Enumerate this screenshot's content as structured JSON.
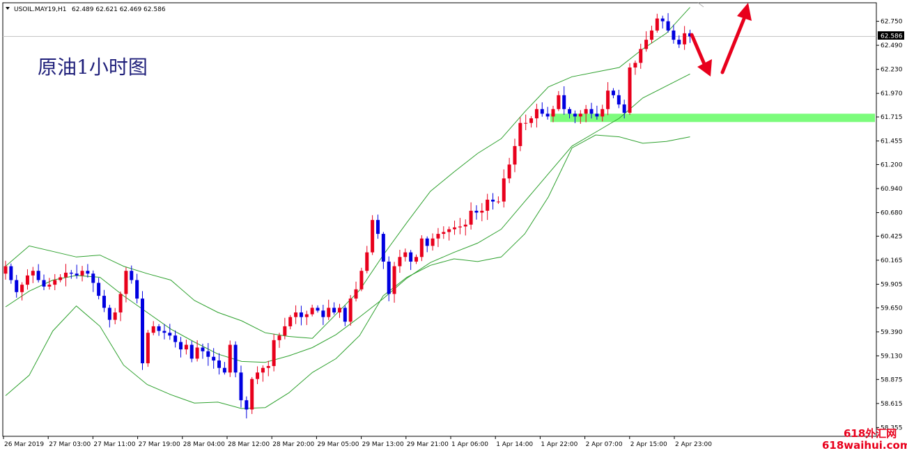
{
  "header": {
    "symbol": "USOIL.MAY19,H1",
    "ohlc": "62.489 62.621 62.469 62.586"
  },
  "annotation_title": "原油1小时图",
  "watermark": {
    "line1": "618外汇网",
    "line2": "618waihui.com"
  },
  "colors": {
    "bull": "#e8001c",
    "bear": "#0000e0",
    "bands": "#2ca02c",
    "support_zone": "#7cfc7c",
    "arrows": "#e8001c",
    "price_line": "#c0c0c0"
  },
  "chart_data": {
    "type": "candlestick",
    "symbol": "USOIL.MAY19",
    "timeframe": "H1",
    "current_price": "62.586",
    "y_ticks": [
      "62.750",
      "62.490",
      "62.230",
      "61.970",
      "61.715",
      "61.455",
      "61.200",
      "60.940",
      "60.680",
      "60.425",
      "60.165",
      "59.905",
      "59.650",
      "59.390",
      "59.130",
      "58.875",
      "58.615",
      "58.355"
    ],
    "ylim": [
      58.26,
      62.95
    ],
    "x_ticks": [
      "26 Mar 2019",
      "27 Mar 03:00",
      "27 Mar 11:00",
      "27 Mar 19:00",
      "28 Mar 04:00",
      "28 Mar 12:00",
      "28 Mar 20:00",
      "29 Mar 05:00",
      "29 Mar 13:00",
      "29 Mar 21:00",
      "1 Apr 06:00",
      "1 Apr 14:00",
      "1 Apr 22:00",
      "2 Apr 07:00",
      "2 Apr 15:00",
      "2 Apr 23:00"
    ],
    "closes": [
      60.1,
      59.95,
      59.82,
      59.9,
      60.0,
      60.05,
      59.95,
      59.88,
      59.9,
      59.95,
      59.98,
      60.03,
      60.02,
      60.0,
      60.05,
      60.02,
      59.92,
      59.78,
      59.65,
      59.52,
      59.6,
      59.8,
      60.05,
      59.95,
      59.75,
      59.05,
      59.38,
      59.45,
      59.4,
      59.38,
      59.35,
      59.28,
      59.2,
      59.25,
      59.1,
      59.22,
      59.18,
      59.12,
      59.08,
      59.0,
      58.95,
      59.25,
      58.95,
      58.65,
      58.55,
      58.88,
      58.95,
      59.0,
      59.02,
      59.3,
      59.35,
      59.45,
      59.55,
      59.6,
      59.55,
      59.58,
      59.65,
      59.62,
      59.55,
      59.65,
      59.6,
      59.65,
      59.5,
      59.75,
      59.85,
      60.05,
      60.25,
      60.6,
      60.45,
      60.15,
      59.8,
      60.1,
      60.2,
      60.25,
      60.15,
      60.2,
      60.4,
      60.32,
      60.4,
      60.45,
      60.47,
      60.5,
      60.52,
      60.53,
      60.55,
      60.7,
      60.68,
      60.7,
      60.82,
      60.8,
      60.8,
      61.05,
      61.2,
      61.4,
      61.65,
      61.65,
      61.7,
      61.8,
      61.75,
      61.72,
      61.8,
      61.95,
      61.8,
      61.75,
      61.72,
      61.75,
      61.8,
      61.75,
      61.72,
      61.8,
      62.0,
      61.95,
      61.85,
      61.76,
      62.25,
      62.3,
      62.45,
      62.55,
      62.65,
      62.78,
      62.75,
      62.65,
      62.55,
      62.5,
      62.62,
      62.586
    ],
    "band_upper": [
      60.1,
      60.32,
      60.26,
      60.2,
      60.22,
      60.1,
      60.02,
      59.95,
      59.73,
      59.6,
      59.51,
      59.38,
      59.34,
      59.32,
      59.58,
      59.84,
      60.22,
      60.57,
      60.91,
      61.12,
      61.32,
      61.48,
      61.77,
      62.04,
      62.15,
      62.2,
      62.25,
      62.45,
      62.62,
      62.9
    ],
    "band_middle": [
      59.66,
      59.83,
      59.95,
      60.0,
      59.98,
      59.78,
      59.6,
      59.42,
      59.28,
      59.15,
      59.07,
      59.06,
      59.13,
      59.22,
      59.36,
      59.55,
      59.75,
      59.97,
      60.14,
      60.25,
      60.35,
      60.5,
      60.8,
      61.1,
      61.4,
      61.55,
      61.7,
      61.92,
      62.05,
      62.18
    ],
    "band_lower": [
      58.7,
      58.92,
      59.4,
      59.67,
      59.45,
      59.03,
      58.82,
      58.71,
      58.62,
      58.63,
      58.56,
      58.57,
      58.73,
      58.95,
      59.1,
      59.35,
      59.78,
      59.98,
      60.11,
      60.18,
      60.15,
      60.2,
      60.45,
      60.85,
      61.38,
      61.52,
      61.5,
      61.43,
      61.45,
      61.5
    ],
    "support_zone": [
      61.66,
      61.75
    ]
  }
}
